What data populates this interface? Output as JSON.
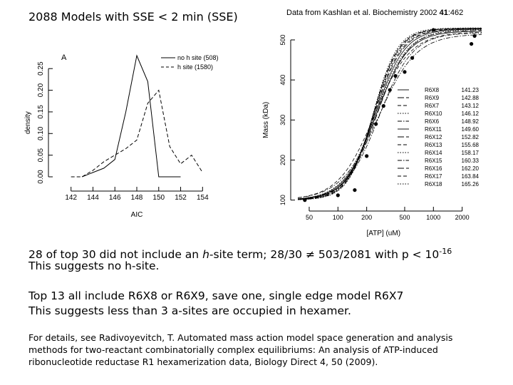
{
  "header": {
    "title": "2088 Models with SSE < 2 min (SSE)",
    "source_prefix": "Data from Kashlan et al. Biochemistry 2002 ",
    "source_volume": "41",
    "source_pages": ":462"
  },
  "notes": {
    "line1_a": "28 of top 30 did not include an ",
    "line1_h": "h",
    "line1_b": "-site term; 28/30 ≠ 503/2081 with p < 10",
    "line1_exp": "-16",
    "line2": "This suggests no h-site.",
    "line3": "Top 13 all include R6X8 or R6X9, save one, single edge model R6X7",
    "line4": "This suggests less than 3 a-sites are occupied in hexamer."
  },
  "reference": "For details, see Radivoyevitch, T. Automated mass action model space generation and analysis methods for two-reactant combinatorially complex equilibriums: An analysis of ATP-induced ribonucleotide reductase R1 hexamerization data, Biology Direct 4, 50 (2009).",
  "chart_data": [
    {
      "type": "line",
      "panel_label": "A",
      "xlabel": "AIC",
      "ylabel": "density",
      "xlim": [
        141.5,
        154.5
      ],
      "ylim": [
        0,
        0.28
      ],
      "x_ticks": [
        142,
        144,
        146,
        148,
        150,
        152,
        154
      ],
      "y_ticks": [
        0.0,
        0.05,
        0.1,
        0.15,
        0.2,
        0.25
      ],
      "y_tick_labels": [
        "0.00",
        "0.05",
        "0.10",
        "0.15",
        "0.20",
        "0.25"
      ],
      "legend": {
        "position": "top-right",
        "entries": [
          "no h site (508)",
          "h site (1580)"
        ]
      },
      "series": [
        {
          "name": "no h site (508)",
          "dash": "solid",
          "x": [
            143,
            144,
            145,
            146,
            147,
            148,
            149,
            150,
            151,
            152
          ],
          "y": [
            0.0,
            0.01,
            0.02,
            0.04,
            0.15,
            0.28,
            0.22,
            0.0,
            0.0,
            0.0
          ]
        },
        {
          "name": "h site (1580)",
          "dash": "dashed",
          "x": [
            142,
            143,
            144,
            145,
            146,
            147,
            148,
            149,
            150,
            151,
            152,
            153,
            154
          ],
          "y": [
            0.0,
            0.0,
            0.015,
            0.035,
            0.05,
            0.065,
            0.085,
            0.17,
            0.2,
            0.07,
            0.03,
            0.05,
            0.01
          ]
        }
      ]
    },
    {
      "type": "line",
      "xlabel": "[ATP] (uM)",
      "ylabel": "Mass (kDa)",
      "x_scale": "log",
      "xlim": [
        38,
        3200
      ],
      "ylim": [
        94,
        532
      ],
      "x_ticks": [
        50,
        100,
        200,
        500,
        1000,
        2000
      ],
      "y_ticks": [
        100,
        200,
        300,
        400,
        500
      ],
      "legend": {
        "position": "right",
        "entries": [
          {
            "name": "R6X8",
            "value": "141.23",
            "dash": "solid"
          },
          {
            "name": "R6X9",
            "value": "142.88",
            "dash": "long-dash"
          },
          {
            "name": "R6X7",
            "value": "143.12",
            "dash": "dashed"
          },
          {
            "name": "R6X10",
            "value": "146.12",
            "dash": "dotted"
          },
          {
            "name": "R6X6",
            "value": "148.92",
            "dash": "dash-dot"
          },
          {
            "name": "R6X11",
            "value": "149.60",
            "dash": "solid"
          },
          {
            "name": "R6X12",
            "value": "152.82",
            "dash": "long-dash"
          },
          {
            "name": "R6X13",
            "value": "155.68",
            "dash": "dashed"
          },
          {
            "name": "R6X14",
            "value": "158.17",
            "dash": "dotted"
          },
          {
            "name": "R6X15",
            "value": "160.33",
            "dash": "dash-dot"
          },
          {
            "name": "R6X16",
            "value": "162.20",
            "dash": "long-dash"
          },
          {
            "name": "R6X17",
            "value": "163.84",
            "dash": "dashed"
          },
          {
            "name": "R6X18",
            "value": "165.26",
            "dash": "dotted"
          }
        ]
      },
      "data_points": {
        "x": [
          45,
          100,
          150,
          200,
          250,
          300,
          350,
          400,
          500,
          600,
          1000,
          2500,
          2700
        ],
        "y": [
          100,
          112,
          125,
          210,
          290,
          335,
          375,
          410,
          420,
          455,
          525,
          490,
          510
        ]
      },
      "curves": [
        {
          "name": "R6X8",
          "xmid": 250,
          "steep": 2.6,
          "top": 522
        },
        {
          "name": "R6X9",
          "xmid": 255,
          "steep": 2.7,
          "top": 524
        },
        {
          "name": "R6X7",
          "xmid": 240,
          "steep": 2.3,
          "top": 520
        },
        {
          "name": "R6X10",
          "xmid": 245,
          "steep": 2.6,
          "top": 526
        },
        {
          "name": "R6X6",
          "xmid": 270,
          "steep": 2.5,
          "top": 518
        },
        {
          "name": "R6X11",
          "xmid": 245,
          "steep": 2.8,
          "top": 527
        },
        {
          "name": "R6X12",
          "xmid": 240,
          "steep": 2.9,
          "top": 528
        },
        {
          "name": "R6X13",
          "xmid": 238,
          "steep": 3.0,
          "top": 528
        },
        {
          "name": "R6X14",
          "xmid": 236,
          "steep": 3.1,
          "top": 529
        },
        {
          "name": "R6X15",
          "xmid": 265,
          "steep": 2.2,
          "top": 515
        },
        {
          "name": "R6X16",
          "xmid": 235,
          "steep": 3.2,
          "top": 529
        },
        {
          "name": "R6X17",
          "xmid": 234,
          "steep": 3.3,
          "top": 529
        },
        {
          "name": "R6X18",
          "xmid": 233,
          "steep": 3.4,
          "top": 530
        }
      ]
    }
  ]
}
